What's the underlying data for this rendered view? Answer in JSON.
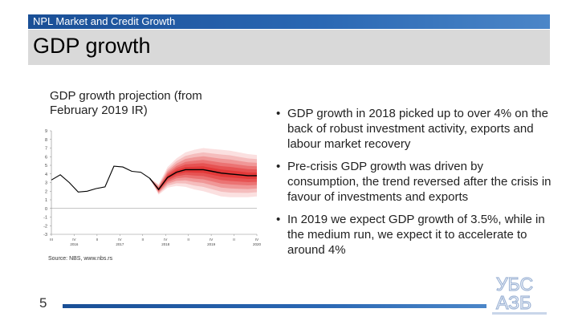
{
  "header": {
    "section": "NPL Market and Credit Growth",
    "title": "GDP growth"
  },
  "chart_title": "GDP growth projection (from February 2019 IR)",
  "source": "Source: NBS, www.nbs.rs",
  "bullets": [
    "GDP growth in 2018 picked up to over 4% on the back of robust investment activity, exports and labour market recovery",
    "Pre-crisis GDP growth was driven by consumption, the trend reversed after the crisis in favour of investments and exports",
    "In 2019 we expect GDP growth of 3.5%, while in the medium run, we expect it to accelerate to around 4%"
  ],
  "page_number": "5",
  "logo": {
    "line1": "УБС",
    "line2": "АЗБ",
    "icon": "ubs-logo"
  },
  "colors": {
    "topbar": "#1a4f96",
    "titlebar": "#d9d9d9",
    "series": "#000000",
    "fan": "#e02020"
  },
  "chart_data": {
    "type": "line",
    "title": "GDP growth projection (from February 2019 IR)",
    "ylim": [
      -3,
      9
    ],
    "yticks": [
      -3,
      -2,
      -1,
      0,
      1,
      2,
      3,
      4,
      5,
      6,
      7,
      8,
      9
    ],
    "x_tick_labels": [
      {
        "top": "III",
        "bottom": ""
      },
      {
        "top": "IV",
        "bottom": "2016"
      },
      {
        "top": "II",
        "bottom": ""
      },
      {
        "top": "IV",
        "bottom": "2017"
      },
      {
        "top": "II",
        "bottom": ""
      },
      {
        "top": "IV",
        "bottom": "2018"
      },
      {
        "top": "II",
        "bottom": ""
      },
      {
        "top": "IV",
        "bottom": "2019"
      },
      {
        "top": "II",
        "bottom": ""
      },
      {
        "top": "IV",
        "bottom": "2020"
      }
    ],
    "n_points": 24,
    "actual": [
      3.3,
      3.9,
      3.0,
      1.9,
      2.0,
      2.3,
      2.5,
      4.9,
      4.8,
      4.3,
      4.2,
      3.5
    ],
    "projection_start_index": 11,
    "projection": [
      3.5,
      2.2,
      3.6,
      4.2,
      4.5,
      4.5,
      4.5,
      4.3,
      4.1,
      4.0,
      3.9,
      3.8,
      3.8
    ],
    "fan_widths": [
      0.0,
      0.6,
      1.2,
      1.6,
      2.0,
      2.3,
      2.5,
      2.6,
      2.7,
      2.7,
      2.6,
      2.5,
      2.4
    ],
    "grid": false,
    "legend": "none"
  }
}
